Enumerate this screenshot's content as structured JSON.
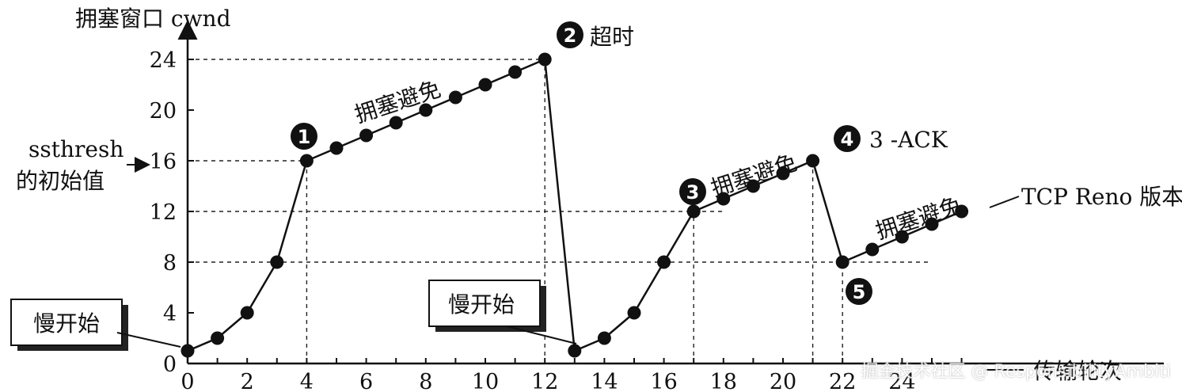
{
  "chart_data": {
    "type": "line",
    "y_axis_title": "拥塞窗口  cwnd",
    "x_axis_title": "传输轮次",
    "x_ticks": [
      "0",
      "2",
      "4",
      "6",
      "8",
      "10",
      "12",
      "14",
      "16",
      "18",
      "20",
      "22",
      "24"
    ],
    "y_ticks": [
      "0",
      "4",
      "8",
      "12",
      "16",
      "20",
      "24"
    ],
    "xlim": [
      0,
      25
    ],
    "ylim": [
      0,
      24
    ],
    "series": [
      {
        "x": [
          0,
          1,
          2,
          3,
          4,
          5,
          6,
          7,
          8,
          9,
          10,
          11,
          12,
          13,
          14,
          15,
          16,
          17,
          18,
          19,
          20,
          21,
          22,
          23,
          24,
          25,
          26
        ],
        "y": [
          1,
          2,
          4,
          8,
          16,
          17,
          18,
          19,
          20,
          21,
          22,
          23,
          24,
          1,
          2,
          4,
          8,
          12,
          13,
          14,
          15,
          16,
          8,
          9,
          10,
          11,
          12
        ]
      }
    ],
    "ssthresh_label_line1": "ssthresh",
    "ssthresh_label_line2": "的初始值",
    "guides": [
      {
        "y": 24,
        "x_from": 0,
        "x_to": 12
      },
      {
        "y": 16,
        "x_from": 0,
        "x_to": 4
      },
      {
        "y": 12,
        "x_from": 0,
        "x_to": 18
      },
      {
        "y": 8,
        "x_from": 0,
        "x_to": 25
      },
      {
        "x": 4,
        "y_from": 0,
        "y_to": 16
      },
      {
        "x": 12,
        "y_from": 0,
        "y_to": 24
      },
      {
        "x": 17,
        "y_from": 0,
        "y_to": 12
      },
      {
        "x": 21,
        "y_from": 0,
        "y_to": 16
      },
      {
        "x": 22,
        "y_from": 0,
        "y_to": 8
      }
    ],
    "annotations": {
      "ca1": "拥塞避免",
      "ca2": "拥塞避免",
      "ca3": "拥塞避免",
      "timeout": "超时",
      "three_ack": "3 -ACK",
      "tcp_reno": "TCP Reno 版本",
      "slow_start_1": "慢开始",
      "slow_start_2": "慢开始"
    },
    "markers": [
      "1",
      "2",
      "3",
      "4",
      "5"
    ]
  },
  "watermark": "掘金技术社区 @ ResponsibilityAmbiti"
}
